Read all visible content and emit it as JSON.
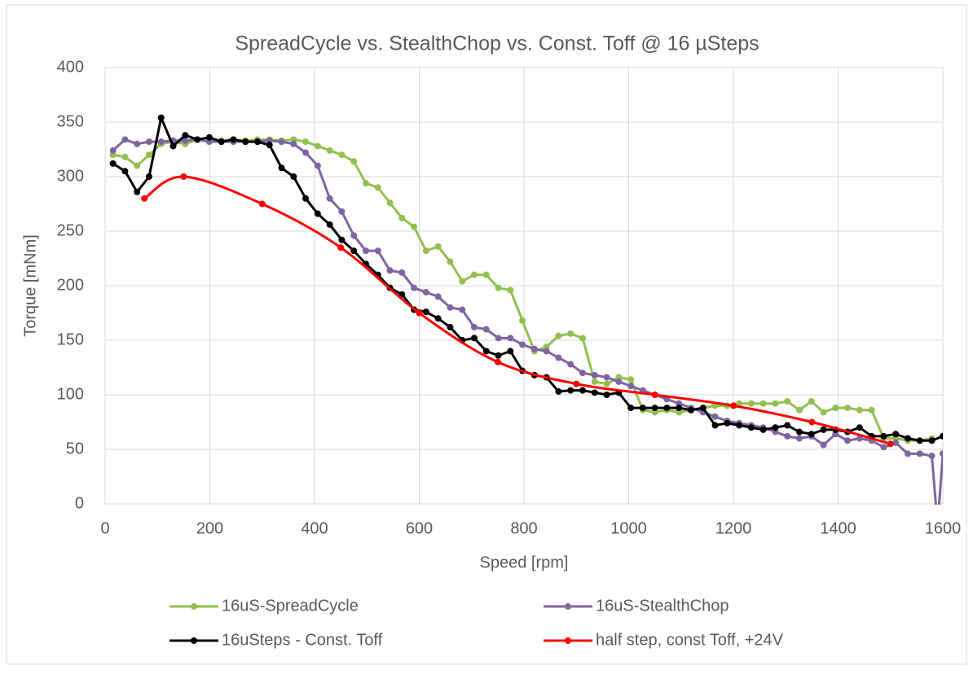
{
  "chart_data": {
    "type": "line",
    "title": "SpreadCycle vs. StealthChop vs. Const. Toff @ 16 µSteps",
    "x_label": "Speed [rpm]",
    "y_label": "Torque [mNm]",
    "xlim": [
      0,
      1600
    ],
    "xticks": [
      0,
      200,
      400,
      600,
      800,
      1000,
      1200,
      1400,
      1600
    ],
    "ylim": [
      0,
      400
    ],
    "yticks": [
      0,
      50,
      100,
      150,
      200,
      250,
      300,
      350,
      400
    ],
    "grid": true,
    "legend": "bottom",
    "series": [
      {
        "name": "16uS-SpreadCycle",
        "color": "#92c050",
        "x": [
          15,
          38,
          61,
          84,
          107,
          130,
          153,
          176,
          199,
          222,
          245,
          268,
          291,
          314,
          337,
          360,
          383,
          406,
          429,
          452,
          475,
          498,
          521,
          544,
          567,
          590,
          613,
          636,
          659,
          682,
          705,
          728,
          751,
          774,
          797,
          820,
          843,
          866,
          889,
          912,
          935,
          958,
          981,
          1004,
          1027,
          1050,
          1073,
          1096,
          1119,
          1142,
          1165,
          1188,
          1211,
          1234,
          1257,
          1280,
          1303,
          1326,
          1349,
          1372,
          1395,
          1418,
          1441,
          1464,
          1487,
          1510,
          1533,
          1556,
          1579
        ],
        "values": [
          320,
          318,
          310,
          320,
          330,
          332,
          330,
          334,
          334,
          333,
          334,
          333,
          334,
          334,
          333,
          334,
          332,
          328,
          324,
          320,
          314,
          294,
          290,
          276,
          262,
          254,
          232,
          236,
          222,
          204,
          210,
          210,
          198,
          196,
          168,
          140,
          144,
          154,
          156,
          152,
          112,
          110,
          116,
          114,
          86,
          84,
          86,
          84,
          86,
          88,
          90,
          90,
          92,
          92,
          92,
          92,
          94,
          86,
          94,
          84,
          88,
          88,
          86,
          86,
          60,
          60,
          58,
          58,
          60
        ]
      },
      {
        "name": "16uS-StealthChop",
        "color": "#8064a2",
        "x": [
          15,
          38,
          61,
          84,
          107,
          130,
          153,
          176,
          199,
          222,
          245,
          268,
          291,
          314,
          337,
          360,
          383,
          406,
          429,
          452,
          475,
          498,
          521,
          544,
          567,
          590,
          613,
          636,
          659,
          682,
          705,
          728,
          751,
          774,
          797,
          820,
          843,
          866,
          889,
          912,
          935,
          958,
          981,
          1004,
          1027,
          1050,
          1073,
          1096,
          1119,
          1142,
          1165,
          1188,
          1211,
          1234,
          1257,
          1280,
          1303,
          1326,
          1349,
          1372,
          1395,
          1418,
          1441,
          1464,
          1487,
          1510,
          1533,
          1556,
          1579,
          1590,
          1600
        ],
        "values": [
          324,
          334,
          330,
          332,
          332,
          333,
          333,
          334,
          332,
          332,
          332,
          332,
          332,
          333,
          332,
          330,
          322,
          310,
          280,
          268,
          246,
          232,
          232,
          214,
          212,
          198,
          194,
          190,
          180,
          178,
          162,
          160,
          152,
          152,
          146,
          142,
          140,
          134,
          128,
          120,
          118,
          116,
          112,
          108,
          104,
          100,
          96,
          92,
          88,
          84,
          80,
          76,
          74,
          72,
          70,
          66,
          62,
          60,
          62,
          54,
          64,
          58,
          60,
          58,
          52,
          56,
          46,
          46,
          44,
          -20,
          46
        ]
      },
      {
        "name": "16uSteps - Const. Toff",
        "color": "#000000",
        "x": [
          15,
          38,
          61,
          84,
          107,
          130,
          153,
          176,
          199,
          222,
          245,
          268,
          291,
          314,
          337,
          360,
          383,
          406,
          429,
          452,
          475,
          498,
          521,
          544,
          567,
          590,
          613,
          636,
          659,
          682,
          705,
          728,
          751,
          774,
          797,
          820,
          843,
          866,
          889,
          912,
          935,
          958,
          981,
          1004,
          1027,
          1050,
          1073,
          1096,
          1119,
          1142,
          1165,
          1188,
          1211,
          1234,
          1257,
          1280,
          1303,
          1326,
          1349,
          1372,
          1395,
          1418,
          1441,
          1464,
          1487,
          1510,
          1533,
          1556,
          1579,
          1600
        ],
        "values": [
          312,
          305,
          286,
          300,
          354,
          328,
          338,
          334,
          336,
          332,
          334,
          332,
          332,
          329,
          308,
          300,
          280,
          266,
          256,
          242,
          232,
          220,
          210,
          198,
          192,
          178,
          176,
          170,
          162,
          150,
          152,
          140,
          136,
          140,
          122,
          118,
          116,
          103,
          104,
          104,
          102,
          100,
          102,
          88,
          88,
          88,
          88,
          88,
          86,
          88,
          72,
          74,
          72,
          70,
          68,
          70,
          72,
          66,
          64,
          68,
          68,
          66,
          70,
          62,
          62,
          64,
          60,
          58,
          58,
          62
        ]
      },
      {
        "name": "half step, const Toff, +24V",
        "color": "#ff0000",
        "smooth": true,
        "x": [
          75,
          150,
          300,
          450,
          600,
          750,
          900,
          1050,
          1200,
          1350,
          1500
        ],
        "values": [
          280,
          300,
          275,
          235,
          175,
          130,
          110,
          100,
          90,
          75,
          55
        ]
      }
    ]
  }
}
